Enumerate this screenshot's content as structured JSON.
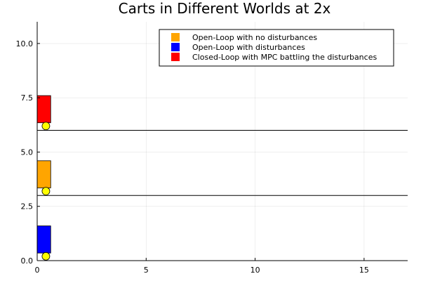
{
  "chart_data": {
    "type": "scatter",
    "title": "Carts in Different Worlds at 2x",
    "xlabel": "",
    "ylabel": "",
    "xlim": [
      0,
      17
    ],
    "ylim": [
      0,
      11
    ],
    "x_ticks": [
      0,
      5,
      10,
      15
    ],
    "y_ticks": [
      0,
      2.5,
      5,
      7.5,
      10
    ],
    "x_tick_labels": [
      "0",
      "5",
      "10",
      "15"
    ],
    "y_tick_labels": [
      "0.0",
      "2.5",
      "5.0",
      "7.5",
      "10.0"
    ],
    "grid": true,
    "legend_position": "top-right",
    "tracks": [
      {
        "y": 3
      },
      {
        "y": 6
      }
    ],
    "series": [
      {
        "name": "Open-Loop with no disturbances",
        "color": "#FFA500",
        "cart_x": [
          0,
          0.62
        ],
        "cart_y": [
          3.35,
          4.6
        ],
        "wheel": [
          0.4,
          3.2
        ]
      },
      {
        "name": "Open-Loop with disturbances",
        "color": "#0000FF",
        "cart_x": [
          0,
          0.62
        ],
        "cart_y": [
          0.35,
          1.6
        ],
        "wheel": [
          0.4,
          0.2
        ]
      },
      {
        "name": "Closed-Loop with MPC battling the disturbances",
        "color": "#FF0000",
        "cart_x": [
          0,
          0.62
        ],
        "cart_y": [
          6.35,
          7.6
        ],
        "wheel": [
          0.4,
          6.2
        ]
      }
    ],
    "wheel_color": "#FFFF00"
  }
}
